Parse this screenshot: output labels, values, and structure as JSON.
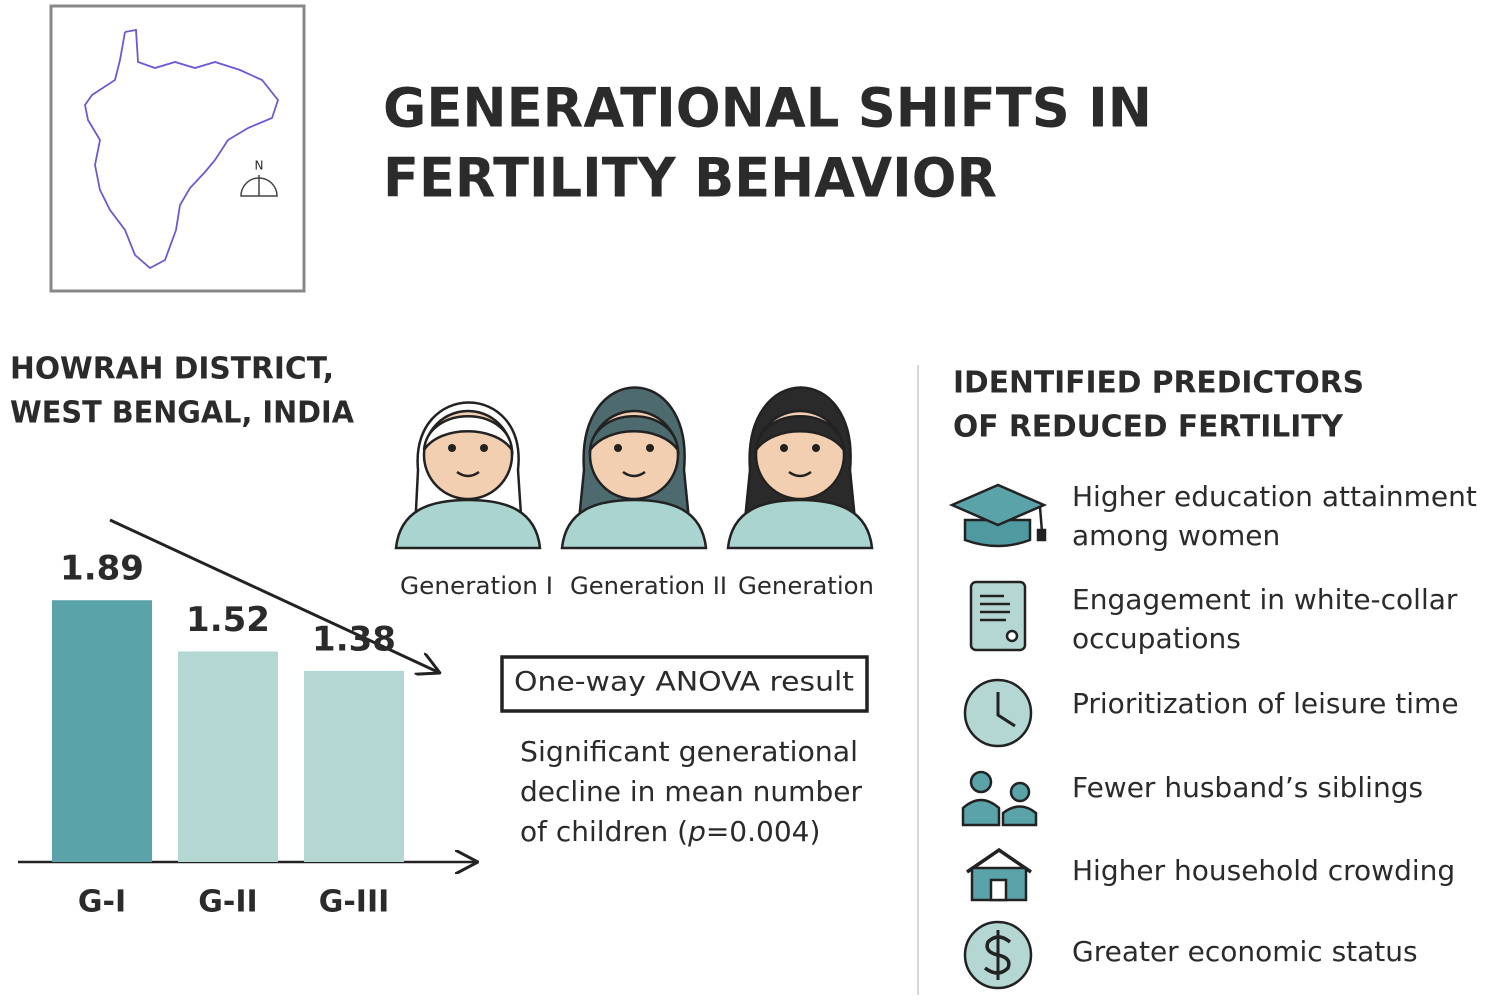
{
  "title": [
    "GENERATIONAL SHIFTS IN",
    "FERTILITY BEHAVIOR"
  ],
  "map": {
    "north": "N"
  },
  "location": [
    "HOWRAH DISTRICT,",
    "WEST BENGAL, INDIA"
  ],
  "generations": [
    "Generation I",
    "Generation II",
    "Generation"
  ],
  "anova": {
    "label": "One-way ANOVA result",
    "description": [
      "Significant generational",
      "decline in mean number"
    ],
    "last_line": {
      "before": "of children (",
      "italic": "p",
      "after": "=0.004)"
    }
  },
  "predictors": {
    "heading": [
      "IDENTIFIED PREDICTORS",
      "OF REDUCED FERTILITY"
    ],
    "items": [
      [
        "Higher education attainment",
        "among women"
      ],
      [
        "Engagement in white-collar",
        "occupations"
      ],
      [
        "Prioritization of leisure time"
      ],
      [
        "Fewer husband’s siblings"
      ],
      [
        "Higher household crowding"
      ],
      [
        "Greater economic status"
      ]
    ]
  },
  "chart_data": {
    "type": "bar",
    "categories": [
      "G-I",
      "G-II",
      "G-III"
    ],
    "values": [
      1.89,
      1.52,
      1.38
    ],
    "colors": [
      "#5aa3a8",
      "#b4d7d3",
      "#b4d7d3"
    ],
    "ylim": [
      0,
      2
    ]
  }
}
